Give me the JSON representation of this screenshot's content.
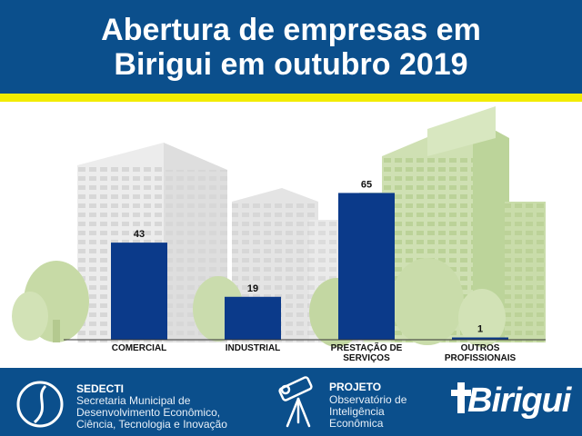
{
  "header": {
    "title_line1": "Abertura de empresas em",
    "title_line2": "Birigui em outubro 2019"
  },
  "chart_data": {
    "type": "bar",
    "title": "Abertura de empresas em Birigui em outubro 2019",
    "categories": [
      "COMERCIAL",
      "INDUSTRIAL",
      "PRESTAÇÃO DE SERVIÇOS",
      "OUTROS PROFISSIONAIS"
    ],
    "category_lines": [
      [
        "COMERCIAL"
      ],
      [
        "INDUSTRIAL"
      ],
      [
        "PRESTAÇÃO DE",
        "SERVIÇOS"
      ],
      [
        "OUTROS",
        "PROFISSIONAIS"
      ]
    ],
    "values": [
      43,
      19,
      65,
      1
    ],
    "ylim": [
      0,
      70
    ],
    "grid": false,
    "bar_color": "#0b3a8a"
  },
  "footer": {
    "sedecti": {
      "name": "SEDECTI",
      "lines": [
        "Secretaria Municipal de",
        "Desenvolvimento Econômico,",
        "Ciência, Tecnologia e Inovação"
      ]
    },
    "projeto": {
      "name": "PROJETO",
      "lines": [
        "Observatório de",
        "Inteligência",
        "Econômica"
      ]
    },
    "brand": "Birigui"
  },
  "colors": {
    "header_blue": "#0b4f8c",
    "accent_yellow": "#f2ec00",
    "building_green": "#c9dcaa",
    "building_gray": "#e6e6e6"
  }
}
